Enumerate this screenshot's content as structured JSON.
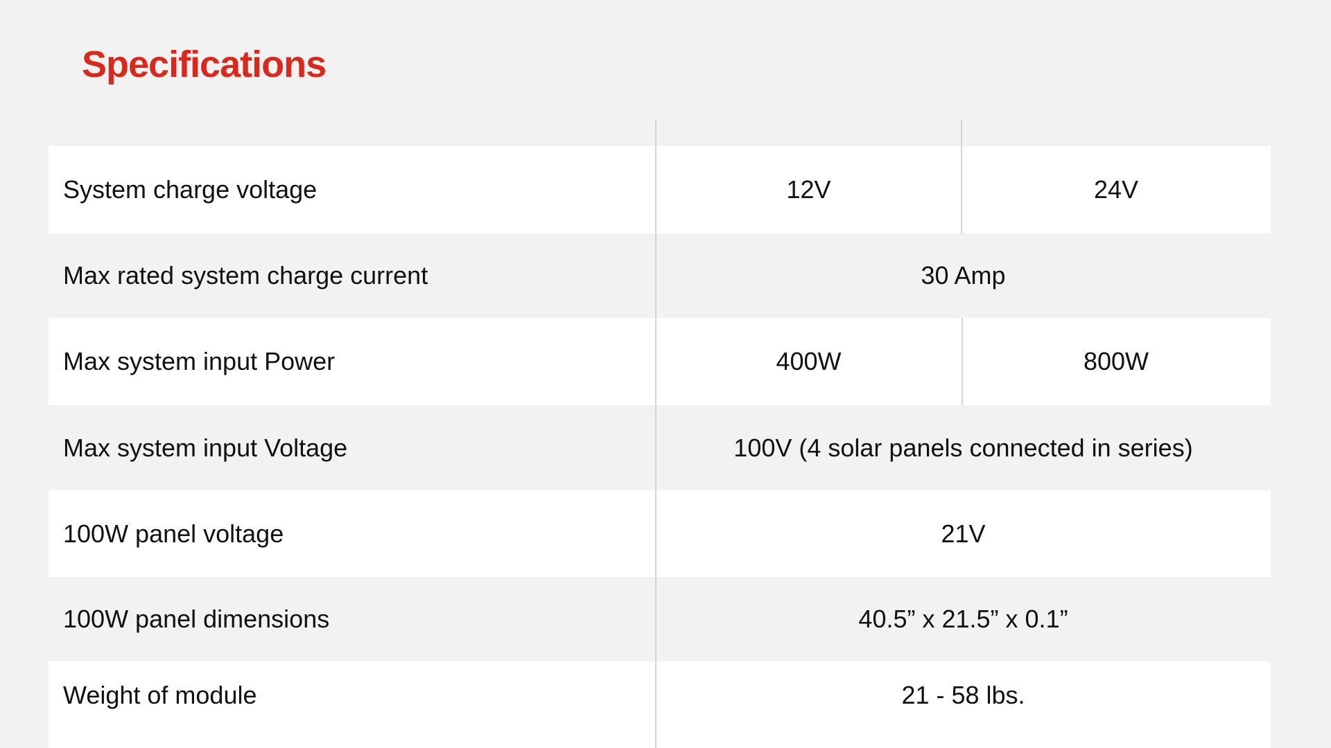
{
  "title": "Specifications",
  "colors": {
    "accent": "#d9291c",
    "background": "#f2f2f2",
    "row_alt": "#ffffff"
  },
  "rows": [
    {
      "label": "System charge voltage",
      "values": [
        "12V",
        "24V"
      ]
    },
    {
      "label": "Max rated system charge current",
      "values": [
        "30 Amp"
      ]
    },
    {
      "label": "Max system input Power",
      "values": [
        "400W",
        "800W"
      ]
    },
    {
      "label": "Max system input Voltage",
      "values": [
        "100V (4 solar panels connected in series)"
      ]
    },
    {
      "label": "100W panel voltage",
      "values": [
        "21V"
      ]
    },
    {
      "label": "100W panel dimensions",
      "values": [
        "40.5” x 21.5” x 0.1”"
      ]
    },
    {
      "label": "Weight of module",
      "values": [
        "21 - 58 lbs."
      ]
    }
  ]
}
